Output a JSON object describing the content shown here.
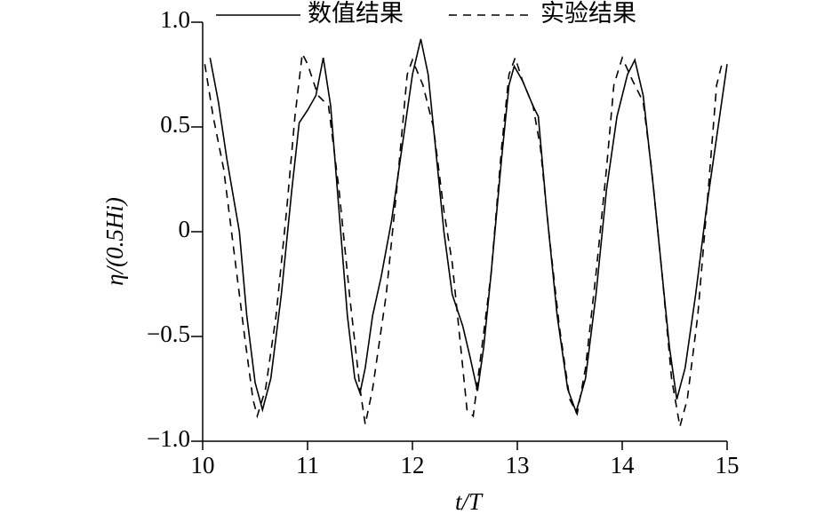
{
  "chart_data": {
    "type": "line",
    "xlabel": "t/T",
    "ylabel": "η/(0.5Hi)",
    "xlim": [
      10,
      15
    ],
    "ylim": [
      -1,
      1
    ],
    "xticks": [
      10,
      11,
      12,
      13,
      14,
      15
    ],
    "yticks": [
      {
        "value": 1,
        "label": "1.0"
      },
      {
        "value": 0.5,
        "label": "0.5"
      },
      0,
      {
        "value": -0.5,
        "label": "−0.5"
      },
      {
        "value": -1,
        "label": "−1.0"
      }
    ],
    "legend": "top",
    "series": [
      {
        "name": "数值结果",
        "color": "#000000",
        "dash": "solid",
        "x": [
          10.07,
          10.15,
          10.23,
          10.35,
          10.42,
          10.5,
          10.57,
          10.65,
          10.75,
          10.85,
          10.92,
          11.0,
          11.08,
          11.15,
          11.22,
          11.3,
          11.38,
          11.45,
          11.5,
          11.55,
          11.62,
          11.7,
          11.8,
          11.9,
          12.0,
          12.08,
          12.15,
          12.22,
          12.3,
          12.38,
          12.48,
          12.55,
          12.62,
          12.68,
          12.75,
          12.85,
          12.92,
          12.97,
          13.05,
          13.15,
          13.2,
          13.28,
          13.38,
          13.48,
          13.56,
          13.65,
          13.75,
          13.85,
          13.95,
          14.05,
          14.12,
          14.2,
          14.3,
          14.38,
          14.45,
          14.52,
          14.6,
          14.7,
          14.8,
          14.9,
          15.0
        ],
        "values": [
          0.83,
          0.62,
          0.35,
          0.0,
          -0.4,
          -0.72,
          -0.85,
          -0.7,
          -0.3,
          0.2,
          0.52,
          0.58,
          0.65,
          0.83,
          0.6,
          0.1,
          -0.4,
          -0.7,
          -0.77,
          -0.65,
          -0.4,
          -0.22,
          0.05,
          0.4,
          0.75,
          0.92,
          0.75,
          0.4,
          0.0,
          -0.3,
          -0.45,
          -0.6,
          -0.76,
          -0.55,
          -0.2,
          0.35,
          0.7,
          0.79,
          0.72,
          0.6,
          0.55,
          0.1,
          -0.4,
          -0.75,
          -0.86,
          -0.7,
          -0.3,
          0.2,
          0.55,
          0.75,
          0.82,
          0.65,
          0.2,
          -0.2,
          -0.55,
          -0.8,
          -0.65,
          -0.3,
          0.1,
          0.45,
          0.8
        ]
      },
      {
        "name": "实验结果",
        "color": "#000000",
        "dash": "dashed",
        "x": [
          10.02,
          10.1,
          10.2,
          10.3,
          10.4,
          10.48,
          10.52,
          10.6,
          10.7,
          10.8,
          10.88,
          10.95,
          11.0,
          11.1,
          11.2,
          11.3,
          11.4,
          11.5,
          11.55,
          11.62,
          11.75,
          11.85,
          11.95,
          12.0,
          12.1,
          12.2,
          12.3,
          12.38,
          12.45,
          12.52,
          12.58,
          12.65,
          12.75,
          12.85,
          12.92,
          12.98,
          13.05,
          13.15,
          13.22,
          13.3,
          13.4,
          13.5,
          13.57,
          13.65,
          13.75,
          13.85,
          13.92,
          14.0,
          14.1,
          14.2,
          14.28,
          14.38,
          14.47,
          14.55,
          14.62,
          14.72,
          14.82,
          14.9,
          14.96
        ],
        "values": [
          0.8,
          0.55,
          0.3,
          -0.1,
          -0.5,
          -0.8,
          -0.88,
          -0.75,
          -0.4,
          0.1,
          0.55,
          0.85,
          0.8,
          0.65,
          0.6,
          0.2,
          -0.3,
          -0.75,
          -0.92,
          -0.75,
          -0.3,
          0.2,
          0.75,
          0.82,
          0.7,
          0.5,
          0.1,
          -0.15,
          -0.5,
          -0.85,
          -0.88,
          -0.6,
          -0.2,
          0.4,
          0.75,
          0.83,
          0.72,
          0.6,
          0.4,
          0.0,
          -0.45,
          -0.8,
          -0.87,
          -0.65,
          -0.2,
          0.3,
          0.7,
          0.83,
          0.72,
          0.62,
          0.3,
          -0.2,
          -0.7,
          -0.93,
          -0.8,
          -0.4,
          0.2,
          0.7,
          0.82
        ]
      }
    ]
  }
}
